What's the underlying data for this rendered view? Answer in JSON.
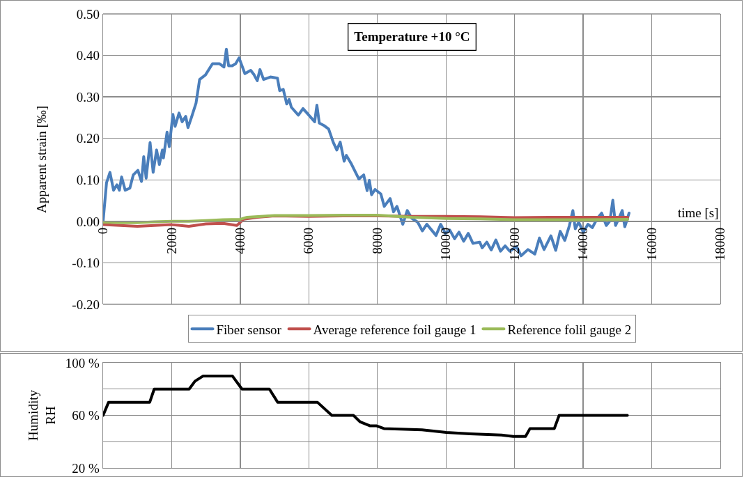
{
  "chart_data": [
    {
      "type": "line",
      "title": "Temperature +10 °C",
      "xlabel": "time [s]",
      "ylabel": "Apparent strain [‰]",
      "xlim": [
        0,
        18000
      ],
      "xticks": [
        0,
        2000,
        4000,
        6000,
        8000,
        10000,
        12000,
        14000,
        16000,
        18000
      ],
      "ylim": [
        -0.2,
        0.5
      ],
      "yticks": [
        {
          "value": -0.2,
          "label": "-0.20"
        },
        {
          "value": -0.1,
          "label": "-0.10"
        },
        {
          "value": 0,
          "label": "0.00"
        },
        {
          "value": 0.1,
          "label": "0.10"
        },
        {
          "value": 0.2,
          "label": "0.20"
        },
        {
          "value": 0.3,
          "label": "0.30"
        },
        {
          "value": 0.4,
          "label": "0.40"
        },
        {
          "value": 0.5,
          "label": "0.50"
        }
      ],
      "grid": true,
      "legend": "bottom",
      "marker": "none",
      "line_style": "solid",
      "series": [
        {
          "name": "Fiber sensor",
          "color": "#4a7ebb",
          "x": [
            0,
            100,
            200,
            305,
            405,
            475,
            540,
            645,
            780,
            880,
            1015,
            1120,
            1185,
            1255,
            1370,
            1460,
            1560,
            1640,
            1730,
            1760,
            1865,
            1930,
            2035,
            2100,
            2215,
            2305,
            2410,
            2475,
            2575,
            2710,
            2815,
            2985,
            3190,
            3390,
            3525,
            3595,
            3660,
            3765,
            3865,
            3965,
            4135,
            4305,
            4405,
            4495,
            4575,
            4680,
            4880,
            5085,
            5150,
            5255,
            5355,
            5425,
            5490,
            5695,
            5830,
            6000,
            6170,
            6235,
            6305,
            6440,
            6575,
            6710,
            6815,
            6915,
            7030,
            7095,
            7230,
            7460,
            7600,
            7700,
            7765,
            7830,
            7930,
            8100,
            8200,
            8370,
            8470,
            8570,
            8740,
            8870,
            9005,
            9175,
            9310,
            9440,
            9580,
            9710,
            9845,
            9980,
            10110,
            10250,
            10380,
            10515,
            10650,
            10785,
            10985,
            11055,
            11190,
            11320,
            11455,
            11590,
            11725,
            11860,
            12060,
            12190,
            12390,
            12590,
            12725,
            12860,
            13060,
            13200,
            13330,
            13465,
            13600,
            13700,
            13770,
            13870,
            14005,
            14140,
            14270,
            14410,
            14540,
            14675,
            14780,
            14865,
            14945,
            15050,
            15140,
            15215,
            15340
          ],
          "values": [
            0.0,
            0.093,
            0.118,
            0.075,
            0.088,
            0.075,
            0.107,
            0.075,
            0.08,
            0.112,
            0.123,
            0.096,
            0.156,
            0.104,
            0.19,
            0.118,
            0.172,
            0.137,
            0.172,
            0.153,
            0.215,
            0.18,
            0.258,
            0.229,
            0.261,
            0.24,
            0.253,
            0.226,
            0.25,
            0.285,
            0.342,
            0.353,
            0.38,
            0.38,
            0.372,
            0.415,
            0.375,
            0.375,
            0.38,
            0.394,
            0.356,
            0.364,
            0.353,
            0.339,
            0.366,
            0.342,
            0.348,
            0.345,
            0.315,
            0.318,
            0.283,
            0.294,
            0.275,
            0.256,
            0.272,
            0.256,
            0.24,
            0.28,
            0.237,
            0.231,
            0.223,
            0.191,
            0.172,
            0.191,
            0.145,
            0.159,
            0.14,
            0.102,
            0.112,
            0.074,
            0.099,
            0.064,
            0.077,
            0.066,
            0.036,
            0.055,
            0.023,
            0.036,
            -0.007,
            0.026,
            0.007,
            -0.002,
            -0.023,
            -0.007,
            -0.021,
            -0.034,
            -0.007,
            -0.029,
            -0.021,
            -0.042,
            -0.026,
            -0.048,
            -0.029,
            -0.053,
            -0.05,
            -0.064,
            -0.05,
            -0.069,
            -0.045,
            -0.072,
            -0.059,
            -0.072,
            -0.061,
            -0.083,
            -0.068,
            -0.079,
            -0.04,
            -0.068,
            -0.035,
            -0.07,
            -0.024,
            -0.046,
            -0.01,
            0.026,
            -0.018,
            -0.002,
            -0.026,
            -0.007,
            -0.015,
            0.007,
            0.02,
            -0.01,
            0.001,
            0.051,
            -0.01,
            0.009,
            0.026,
            -0.013,
            0.02
          ]
        },
        {
          "name": "Average reference foil gauge 1",
          "color": "#c0504d",
          "x": [
            0,
            500,
            1000,
            1500,
            2000,
            2500,
            3000,
            3500,
            3900,
            4100,
            4500,
            5000,
            6000,
            7000,
            8000,
            9000,
            10000,
            11000,
            12000,
            13000,
            14000,
            15300
          ],
          "values": [
            -0.008,
            -0.01,
            -0.012,
            -0.01,
            -0.008,
            -0.012,
            -0.006,
            -0.005,
            -0.01,
            0.005,
            0.01,
            0.013,
            0.012,
            0.013,
            0.013,
            0.012,
            0.012,
            0.011,
            0.009,
            0.01,
            0.01,
            0.01
          ]
        },
        {
          "name": "Reference folil gauge 2",
          "color": "#9bbb59",
          "x": [
            0,
            500,
            1000,
            1500,
            2000,
            2500,
            3000,
            3500,
            4000,
            4200,
            5000,
            6000,
            7000,
            8000,
            9000,
            10000,
            11000,
            12000,
            13000,
            14000,
            15300
          ],
          "values": [
            -0.002,
            -0.003,
            -0.003,
            -0.001,
            0,
            0,
            0.002,
            0.004,
            0.005,
            0.01,
            0.014,
            0.014,
            0.015,
            0.015,
            0.01,
            0.007,
            0.006,
            0.004,
            0.004,
            0.004,
            0.005
          ]
        }
      ]
    },
    {
      "type": "line",
      "ylabel": "Humidity\nRH",
      "xlim": [
        0,
        18000
      ],
      "xticks": [
        {
          "value": 0,
          "label": null
        },
        {
          "value": 2000,
          "label": null
        },
        {
          "value": 4000,
          "label": null
        },
        {
          "value": 6000,
          "label": null
        },
        {
          "value": 8000,
          "label": null
        },
        {
          "value": 10000,
          "label": null
        },
        {
          "value": 12000,
          "label": null
        },
        {
          "value": 14000,
          "label": null
        },
        {
          "value": 16000,
          "label": null
        },
        {
          "value": 18000,
          "label": null
        }
      ],
      "ylim": [
        20,
        100
      ],
      "yticks": [
        {
          "value": 20,
          "label": "20 %"
        },
        {
          "value": 40,
          "label": null
        },
        {
          "value": 60,
          "label": "60 %"
        },
        {
          "value": 80,
          "label": null
        },
        {
          "value": 100,
          "label": "100 %"
        }
      ],
      "grid": true,
      "tick_labels": "y",
      "marker": "none",
      "line_style": "solid",
      "series": [
        {
          "color": "#000000",
          "x": [
            0,
            160,
            1360,
            1490,
            2510,
            2680,
            2920,
            3770,
            4050,
            4850,
            5090,
            6250,
            6670,
            7300,
            7500,
            7790,
            7980,
            8190,
            9300,
            10010,
            10700,
            11620,
            11960,
            12320,
            12450,
            13160,
            13300,
            15290
          ],
          "values": [
            60,
            70,
            70,
            80,
            80,
            86,
            90,
            90,
            80,
            80,
            70,
            70,
            60,
            60,
            55,
            52,
            52,
            50,
            49,
            47,
            46,
            45,
            44,
            44,
            50,
            50,
            60,
            60
          ]
        }
      ]
    }
  ]
}
